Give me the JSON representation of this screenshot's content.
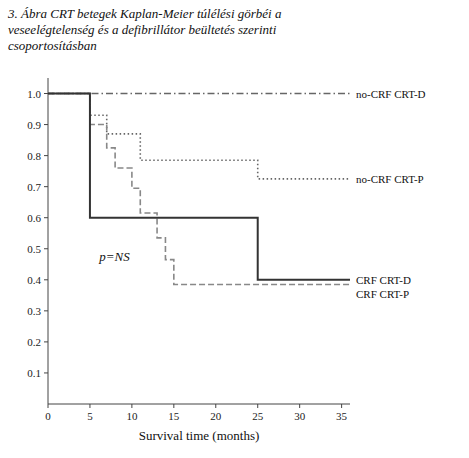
{
  "chart_data": {
    "type": "line",
    "title": [
      "3. Ábra CRT betegek Kaplan-Meier túlélési görbéi a",
      "veseelégtelenség és a defibrillátor beültetés szerinti",
      "csoportosításban"
    ],
    "xlabel": "Survival time (months)",
    "annotation": "p=NS",
    "xlim": [
      0,
      36
    ],
    "ylim": [
      0,
      1.05
    ],
    "xticks": [
      0,
      5,
      10,
      15,
      20,
      25,
      30,
      35
    ],
    "yticks": [
      0.1,
      0.2,
      0.3,
      0.4,
      0.5,
      0.6,
      0.7,
      0.8,
      0.9,
      {
        "value": 1.0,
        "label": "1.0"
      }
    ],
    "grid": false,
    "series": [
      {
        "name": "no-CRF CRT-D",
        "color": "#666666",
        "line_style": "dashdot",
        "x": [
          0,
          36
        ],
        "values": [
          1.0,
          1.0
        ]
      },
      {
        "name": "no-CRF CRT-P",
        "color": "#666666",
        "line_style": "dotted",
        "x": [
          0,
          5,
          5,
          7,
          7,
          11,
          11,
          25,
          25,
          36
        ],
        "values": [
          1.0,
          1.0,
          0.93,
          0.93,
          0.87,
          0.87,
          0.785,
          0.785,
          0.725,
          0.725
        ]
      },
      {
        "name": "CRF CRT-P",
        "color": "#888888",
        "line_style": "dashed",
        "x": [
          0,
          5,
          5,
          7,
          7,
          8,
          8,
          10,
          10,
          11,
          11,
          13,
          13,
          14,
          14,
          15,
          15,
          19,
          19,
          36
        ],
        "values": [
          1.0,
          1.0,
          0.9,
          0.9,
          0.825,
          0.825,
          0.76,
          0.76,
          0.695,
          0.695,
          0.615,
          0.615,
          0.535,
          0.535,
          0.465,
          0.465,
          0.385,
          0.385,
          0.385,
          0.385
        ]
      },
      {
        "name": "CRF CRT-D",
        "color": "#333333",
        "line_style": "solid",
        "x": [
          0,
          5,
          5,
          25,
          25,
          36
        ],
        "values": [
          1.0,
          1.0,
          0.6,
          0.6,
          0.4,
          0.4
        ]
      }
    ]
  }
}
